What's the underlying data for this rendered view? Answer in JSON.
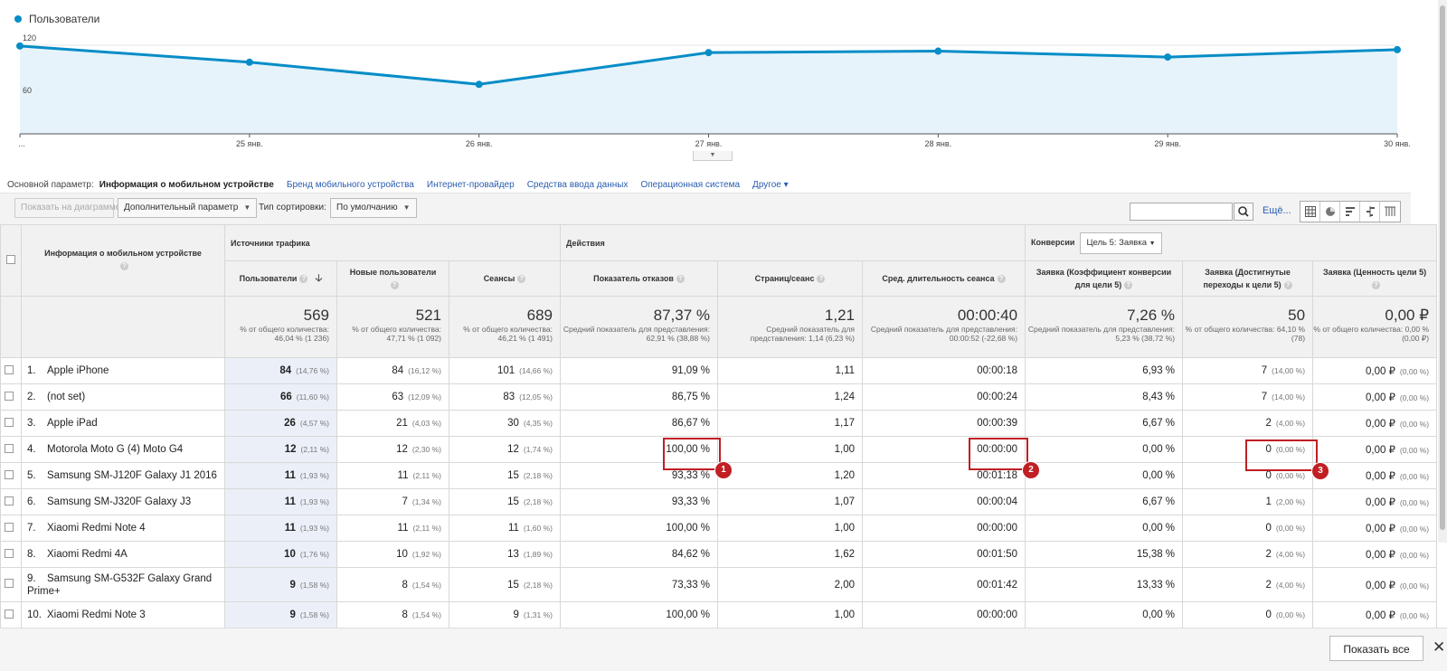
{
  "legend": {
    "label": "Пользователи",
    "color": "#058dc7"
  },
  "chart_data": {
    "type": "area",
    "series": [
      {
        "name": "Пользователи",
        "values": [
          119,
          97,
          67,
          110,
          112,
          104,
          114
        ]
      }
    ],
    "x": [
      "...",
      "25 янв.",
      "26 янв.",
      "27 янв.",
      "28 янв.",
      "29 янв.",
      "30 янв."
    ],
    "y_ticks": [
      "120",
      "60"
    ],
    "ylim": [
      0,
      120
    ],
    "grid": true
  },
  "dims": {
    "label": "Основной параметр:",
    "current": "Информация о мобильном устройстве",
    "links": [
      "Бренд мобильного устройства",
      "Интернет-провайдер",
      "Средства ввода данных",
      "Операционная система",
      "Другое"
    ]
  },
  "toolbar": {
    "plot_btn": "Показать на диаграмме",
    "secondary_dim": "Дополнительный параметр",
    "sort_label": "Тип сортировки:",
    "sort_value": "По умолчанию",
    "more": "Ещё..."
  },
  "table": {
    "dim_header": "Информация о мобильном устройстве",
    "groups": {
      "acquisition": "Источники трафика",
      "behavior": "Действия",
      "conversions": "Конверсии",
      "goal_select": "Цель 5: Заявка"
    },
    "columns": [
      "Пользователи",
      "Новые пользователи",
      "Сеансы",
      "Показатель отказов",
      "Страниц/сеанс",
      "Сред. длительность сеанса",
      "Заявка (Коэффициент конверсии для цели 5)",
      "Заявка (Достигнутые переходы к цели 5)",
      "Заявка (Ценность цели 5)"
    ],
    "totals": [
      {
        "v": "569",
        "s": "% от общего количества: 46,04 % (1 236)"
      },
      {
        "v": "521",
        "s": "% от общего количества: 47,71 % (1 092)"
      },
      {
        "v": "689",
        "s": "% от общего количества: 46,21 % (1 491)"
      },
      {
        "v": "87,37 %",
        "s": "Средний показатель для представления: 62,91 % (38,88 %)"
      },
      {
        "v": "1,21",
        "s": "Средний показатель для представления: 1,14 (6,23 %)"
      },
      {
        "v": "00:00:40",
        "s": "Средний показатель для представления: 00:00:52 (-22,68 %)"
      },
      {
        "v": "7,26 %",
        "s": "Средний показатель для представления: 5,23 % (38,72 %)"
      },
      {
        "v": "50",
        "s": "% от общего количества: 64,10 % (78)"
      },
      {
        "v": "0,00 ₽",
        "s": "% от общего количества: 0,00 % (0,00 ₽)"
      }
    ],
    "rows": [
      {
        "n": "1.",
        "dev": "Apple iPhone",
        "u": "84",
        "up": "(14,76 %)",
        "nu": "84",
        "nup": "(16,12 %)",
        "s": "101",
        "sp": "(14,66 %)",
        "br": "91,09 %",
        "pps": "1,11",
        "dur": "00:00:18",
        "cr": "6,93 %",
        "gc": "7",
        "gcp": "(14,00 %)",
        "gv": "0,00 ₽",
        "gvp": "(0,00 %)"
      },
      {
        "n": "2.",
        "dev": "(not set)",
        "u": "66",
        "up": "(11,60 %)",
        "nu": "63",
        "nup": "(12,09 %)",
        "s": "83",
        "sp": "(12,05 %)",
        "br": "86,75 %",
        "pps": "1,24",
        "dur": "00:00:24",
        "cr": "8,43 %",
        "gc": "7",
        "gcp": "(14,00 %)",
        "gv": "0,00 ₽",
        "gvp": "(0,00 %)"
      },
      {
        "n": "3.",
        "dev": "Apple iPad",
        "u": "26",
        "up": "(4,57 %)",
        "nu": "21",
        "nup": "(4,03 %)",
        "s": "30",
        "sp": "(4,35 %)",
        "br": "86,67 %",
        "pps": "1,17",
        "dur": "00:00:39",
        "cr": "6,67 %",
        "gc": "2",
        "gcp": "(4,00 %)",
        "gv": "0,00 ₽",
        "gvp": "(0,00 %)"
      },
      {
        "n": "4.",
        "dev": "Motorola Moto G (4) Moto G4",
        "u": "12",
        "up": "(2,11 %)",
        "nu": "12",
        "nup": "(2,30 %)",
        "s": "12",
        "sp": "(1,74 %)",
        "br": "100,00 %",
        "pps": "1,00",
        "dur": "00:00:00",
        "cr": "0,00 %",
        "gc": "0",
        "gcp": "(0,00 %)",
        "gv": "0,00 ₽",
        "gvp": "(0,00 %)"
      },
      {
        "n": "5.",
        "dev": "Samsung SM-J120F Galaxy J1 2016",
        "u": "11",
        "up": "(1,93 %)",
        "nu": "11",
        "nup": "(2,11 %)",
        "s": "15",
        "sp": "(2,18 %)",
        "br": "93,33 %",
        "pps": "1,20",
        "dur": "00:01:18",
        "cr": "0,00 %",
        "gc": "0",
        "gcp": "(0,00 %)",
        "gv": "0,00 ₽",
        "gvp": "(0,00 %)"
      },
      {
        "n": "6.",
        "dev": "Samsung SM-J320F Galaxy J3",
        "u": "11",
        "up": "(1,93 %)",
        "nu": "7",
        "nup": "(1,34 %)",
        "s": "15",
        "sp": "(2,18 %)",
        "br": "93,33 %",
        "pps": "1,07",
        "dur": "00:00:04",
        "cr": "6,67 %",
        "gc": "1",
        "gcp": "(2,00 %)",
        "gv": "0,00 ₽",
        "gvp": "(0,00 %)"
      },
      {
        "n": "7.",
        "dev": "Xiaomi Redmi Note 4",
        "u": "11",
        "up": "(1,93 %)",
        "nu": "11",
        "nup": "(2,11 %)",
        "s": "11",
        "sp": "(1,60 %)",
        "br": "100,00 %",
        "pps": "1,00",
        "dur": "00:00:00",
        "cr": "0,00 %",
        "gc": "0",
        "gcp": "(0,00 %)",
        "gv": "0,00 ₽",
        "gvp": "(0,00 %)"
      },
      {
        "n": "8.",
        "dev": "Xiaomi Redmi 4A",
        "u": "10",
        "up": "(1,76 %)",
        "nu": "10",
        "nup": "(1,92 %)",
        "s": "13",
        "sp": "(1,89 %)",
        "br": "84,62 %",
        "pps": "1,62",
        "dur": "00:01:50",
        "cr": "15,38 %",
        "gc": "2",
        "gcp": "(4,00 %)",
        "gv": "0,00 ₽",
        "gvp": "(0,00 %)"
      },
      {
        "n": "9.",
        "dev": "Samsung SM-G532F Galaxy Grand Prime+",
        "u": "9",
        "up": "(1,58 %)",
        "nu": "8",
        "nup": "(1,54 %)",
        "s": "15",
        "sp": "(2,18 %)",
        "br": "73,33 %",
        "pps": "2,00",
        "dur": "00:01:42",
        "cr": "13,33 %",
        "gc": "2",
        "gcp": "(4,00 %)",
        "gv": "0,00 ₽",
        "gvp": "(0,00 %)"
      },
      {
        "n": "10.",
        "dev": "Xiaomi Redmi Note 3",
        "u": "9",
        "up": "(1,58 %)",
        "nu": "8",
        "nup": "(1,54 %)",
        "s": "9",
        "sp": "(1,31 %)",
        "br": "100,00 %",
        "pps": "1,00",
        "dur": "00:00:00",
        "cr": "0,00 %",
        "gc": "0",
        "gcp": "(0,00 %)",
        "gv": "0,00 ₽",
        "gvp": "(0,00 %)"
      }
    ]
  },
  "annotations": [
    "1",
    "2",
    "3"
  ],
  "footer": {
    "show_all": "Показать все",
    "close": "✕"
  }
}
